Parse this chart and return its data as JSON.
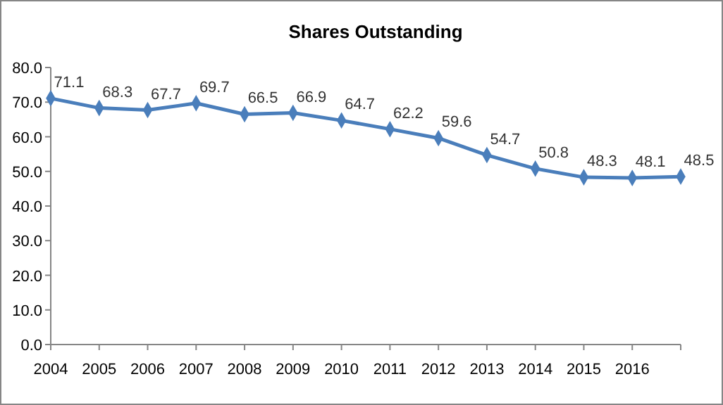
{
  "chart_data": {
    "type": "line",
    "title": "Shares Outstanding",
    "categories": [
      "2004",
      "2005",
      "2006",
      "2007",
      "2008",
      "2009",
      "2010",
      "2011",
      "2012",
      "2013",
      "2014",
      "2015",
      "2016",
      null
    ],
    "series": [
      {
        "color": "#4a7ebb",
        "values": [
          71.1,
          68.3,
          67.7,
          69.7,
          66.5,
          66.9,
          64.7,
          62.2,
          59.6,
          54.7,
          50.8,
          48.3,
          48.1,
          48.5
        ]
      }
    ],
    "ylim": [
      0,
      80
    ],
    "yticks": [
      {
        "value": 0,
        "label": "0.0"
      },
      {
        "value": 10,
        "label": "10.0"
      },
      {
        "value": 20,
        "label": "20.0"
      },
      {
        "value": 30,
        "label": "30.0"
      },
      {
        "value": 40,
        "label": "40.0"
      },
      {
        "value": 50,
        "label": "50.0"
      },
      {
        "value": 60,
        "label": "60.0"
      },
      {
        "value": 70,
        "label": "70.0"
      },
      {
        "value": 80,
        "label": "80.0"
      }
    ],
    "marker": "diamond",
    "data_labels": true
  }
}
